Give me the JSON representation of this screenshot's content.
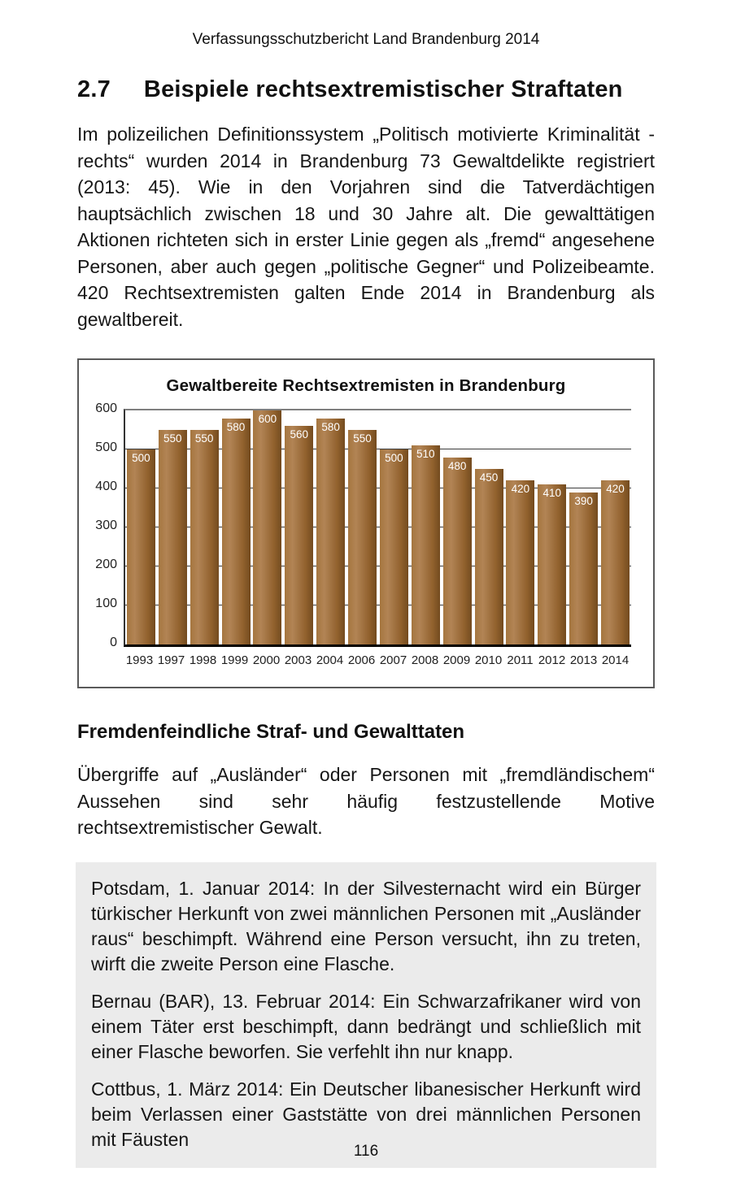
{
  "page": {
    "header": "Verfassungsschutzbericht Land Brandenburg 2014",
    "page_number": "116"
  },
  "section": {
    "number": "2.7",
    "title": "Beispiele rechtsextremistischer Straftaten"
  },
  "intro_paragraph": "Im polizeilichen Definitionssystem „Politisch motivierte Kriminalität - rechts“ wurden 2014 in Brandenburg 73 Gewaltdelikte registriert (2013: 45). Wie in den Vorjahren sind die Tatverdächtigen hauptsächlich zwischen 18 und 30 Jahre alt. Die gewalttätigen Aktionen richteten sich in erster Linie gegen als „fremd“ angesehene Personen, aber auch gegen „politische Gegner“ und Polizeibeamte. 420 Rechtsextremisten galten Ende 2014 in Brandenburg als gewaltbereit.",
  "chart_data": {
    "type": "bar",
    "title": "Gewaltbereite Rechtsextremisten in Brandenburg",
    "categories": [
      "1993",
      "1997",
      "1998",
      "1999",
      "2000",
      "2003",
      "2004",
      "2006",
      "2007",
      "2008",
      "2009",
      "2010",
      "2011",
      "2012",
      "2013",
      "2014"
    ],
    "values": [
      500,
      550,
      550,
      580,
      600,
      560,
      580,
      550,
      500,
      510,
      480,
      450,
      420,
      410,
      390,
      420
    ],
    "xlabel": "",
    "ylabel": "",
    "ylim": [
      0,
      600
    ],
    "yticks": [
      0,
      100,
      200,
      300,
      400,
      500,
      600
    ],
    "grid": true,
    "legend": false,
    "bar_color": "#96682f",
    "bar_label_color": "#ffffff"
  },
  "subsection": {
    "title": "Fremdenfeindliche Straf- und Gewalttaten",
    "paragraph": "Übergriffe auf „Ausländer“ oder Personen mit „fremdländischem“ Aussehen sind sehr häufig festzustellende Motive rechtsextremistischer Gewalt."
  },
  "examples_box": {
    "background": "#ebebeb",
    "items": [
      "Potsdam, 1. Januar 2014: In der Silvesternacht wird ein Bürger türkischer Herkunft von zwei männlichen Personen mit „Ausländer raus“ beschimpft. Während eine Person versucht, ihn zu treten, wirft die zweite Person eine Flasche.",
      "Bernau (BAR), 13. Februar 2014: Ein Schwarzafrikaner wird von einem Täter erst beschimpft, dann bedrängt und schließlich mit einer Flasche beworfen. Sie verfehlt ihn nur knapp.",
      "Cottbus, 1. März 2014: Ein Deutscher libanesischer Herkunft wird beim Verlassen einer Gaststätte von drei männlichen Personen mit Fäusten"
    ]
  }
}
